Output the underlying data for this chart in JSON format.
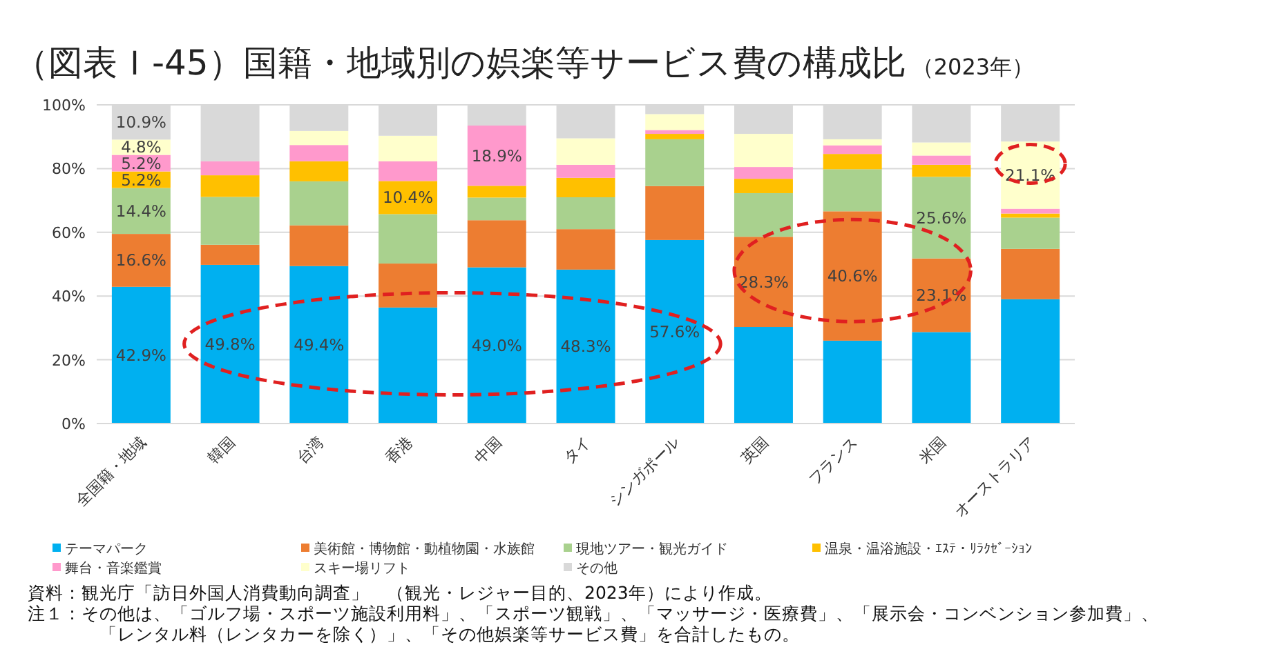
{
  "chart_data": {
    "type": "bar",
    "stacked": true,
    "title": "（図表Ｉ-45）国籍・地域別の娯楽等サービス費の構成比",
    "subtitle": "（2023年）",
    "categories": [
      "全国籍・地域",
      "韓国",
      "台湾",
      "香港",
      "中国",
      "タイ",
      "シンガポール",
      "英国",
      "フランス",
      "米国",
      "オーストラリア"
    ],
    "series": [
      {
        "name": "テーマパーク",
        "color": "#00b0f0",
        "values": [
          42.9,
          49.8,
          49.4,
          36.4,
          49.0,
          48.3,
          57.6,
          30.3,
          26.0,
          28.7,
          39.0
        ],
        "value_labels": [
          "42.9%",
          "49.8%",
          "49.4%",
          null,
          "49.0%",
          "48.3%",
          "57.6%",
          null,
          null,
          null,
          null
        ]
      },
      {
        "name": "美術館・博物館・動植物園・水族館",
        "color": "#ed7d31",
        "values": [
          16.6,
          6.3,
          12.8,
          13.8,
          14.8,
          12.7,
          16.9,
          28.3,
          40.6,
          23.1,
          15.8
        ],
        "value_labels": [
          "16.6%",
          null,
          null,
          null,
          null,
          null,
          null,
          "28.3%",
          "40.6%",
          "23.1%",
          null
        ]
      },
      {
        "name": "現地ツアー・観光ガイド",
        "color": "#a9d18e",
        "values": [
          14.4,
          15.0,
          13.8,
          15.5,
          7.1,
          10.0,
          14.7,
          13.7,
          13.2,
          25.6,
          9.8
        ],
        "value_labels": [
          "14.4%",
          null,
          null,
          null,
          null,
          null,
          null,
          null,
          null,
          "25.6%",
          null
        ]
      },
      {
        "name": "温泉・温浴施設・ｴｽﾃ・ﾘﾗｸｾﾞｰｼｮﾝ",
        "color": "#ffc000",
        "values": [
          5.2,
          6.8,
          6.3,
          10.4,
          3.7,
          6.1,
          1.7,
          4.5,
          4.8,
          3.8,
          1.3
        ],
        "value_labels": [
          "5.2%",
          null,
          null,
          "10.4%",
          null,
          null,
          null,
          null,
          null,
          null,
          null
        ]
      },
      {
        "name": "舞台・音楽鑑賞",
        "color": "#ff99cc",
        "values": [
          5.2,
          4.4,
          5.1,
          6.2,
          18.9,
          4.1,
          1.2,
          3.7,
          2.7,
          2.9,
          1.5
        ],
        "value_labels": [
          "5.2%",
          null,
          null,
          null,
          "18.9%",
          null,
          null,
          null,
          null,
          null,
          null
        ]
      },
      {
        "name": "スキー場リフト",
        "color": "#ffffcc",
        "values": [
          4.8,
          0,
          4.4,
          8.0,
          0,
          8.3,
          5.0,
          10.4,
          1.9,
          4.1,
          21.1
        ],
        "value_labels": [
          "4.8%",
          null,
          null,
          null,
          null,
          null,
          null,
          null,
          null,
          null,
          "21.1%"
        ]
      },
      {
        "name": "その他",
        "color": "#d9d9d9",
        "values": [
          10.9,
          17.7,
          8.2,
          9.7,
          6.5,
          10.5,
          2.9,
          9.1,
          10.8,
          11.8,
          11.5
        ],
        "value_labels": [
          "10.9%",
          null,
          null,
          null,
          null,
          null,
          null,
          null,
          null,
          null,
          null
        ]
      }
    ],
    "ylim": [
      0,
      100
    ],
    "yticks": [
      {
        "value": 0,
        "label": "0%"
      },
      {
        "value": 20,
        "label": "20%"
      },
      {
        "value": 40,
        "label": "40%"
      },
      {
        "value": 60,
        "label": "60%"
      },
      {
        "value": 80,
        "label": "80%"
      },
      {
        "value": 100,
        "label": "100%"
      }
    ],
    "grid": "y",
    "legend": "bottom",
    "annotations": [
      "資料：観光庁「訪日外国人消費動向調査」　（観光・レジャー目的、2023年）により作成。",
      "注１：その他は、「ゴルフ場・スポーツ施設利用料」、「スポーツ観戦」、「マッサージ・医療費」、「展示会・コンベンション参加費」、",
      "「レンタル料（レンタカーを除く）」、「その他娯楽等サービス費」を合計したもの。"
    ]
  }
}
